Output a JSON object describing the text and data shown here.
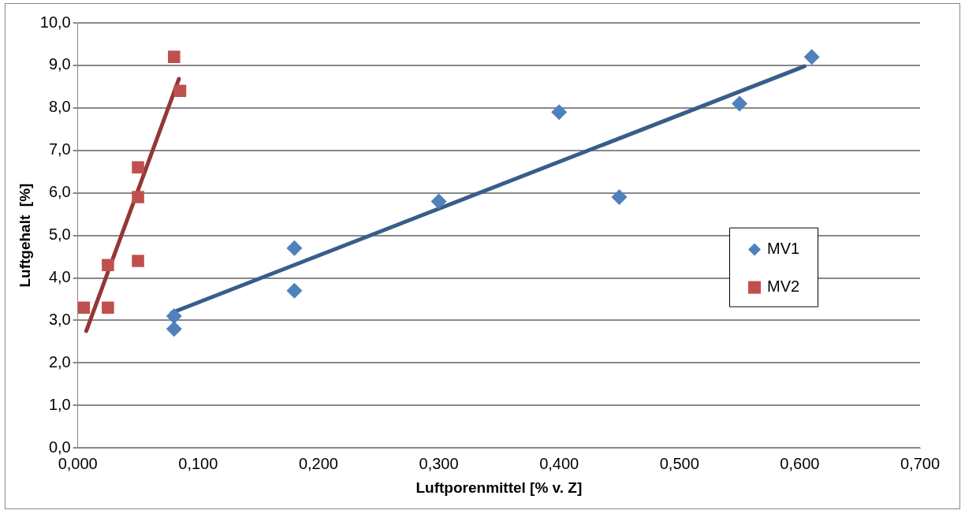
{
  "chart_data": {
    "type": "scatter",
    "xlabel": "Luftporenmittel [% v. Z]",
    "ylabel": "Luftgehalt  [%]",
    "xlim": [
      0,
      0.7
    ],
    "xticks": [
      {
        "value": 0,
        "label": "0,000"
      },
      {
        "value": 0.1,
        "label": "0,100"
      },
      {
        "value": 0.2,
        "label": "0,200"
      },
      {
        "value": 0.3,
        "label": "0,300"
      },
      {
        "value": 0.4,
        "label": "0,400"
      },
      {
        "value": 0.5,
        "label": "0,500"
      },
      {
        "value": 0.6,
        "label": "0,600"
      },
      {
        "value": 0.7,
        "label": "0,700"
      }
    ],
    "ylim": [
      0,
      10
    ],
    "yticks": [
      {
        "value": 0,
        "label": "0,0"
      },
      {
        "value": 1,
        "label": "1,0"
      },
      {
        "value": 2,
        "label": "2,0"
      },
      {
        "value": 3,
        "label": "3,0"
      },
      {
        "value": 4,
        "label": "4,0"
      },
      {
        "value": 5,
        "label": "5,0"
      },
      {
        "value": 6,
        "label": "6,0"
      },
      {
        "value": 7,
        "label": "7,0"
      },
      {
        "value": 8,
        "label": "8,0"
      },
      {
        "value": 9,
        "label": "9,0"
      },
      {
        "value": 10,
        "label": "10,0"
      }
    ],
    "grid": "y",
    "legend": "right",
    "series": [
      {
        "name": "MV1",
        "color": "#4f81bd",
        "marker": "diamond",
        "x": [
          0.08,
          0.08,
          0.18,
          0.18,
          0.3,
          0.4,
          0.45,
          0.55,
          0.61
        ],
        "values": [
          3.1,
          2.8,
          4.7,
          3.7,
          5.8,
          7.9,
          5.9,
          8.1,
          9.2
        ]
      },
      {
        "name": "MV2",
        "color": "#c0504d",
        "marker": "square",
        "x": [
          0.005,
          0.025,
          0.025,
          0.05,
          0.05,
          0.05,
          0.08,
          0.085
        ],
        "values": [
          3.3,
          3.3,
          4.3,
          4.4,
          5.9,
          6.6,
          9.2,
          8.4
        ]
      },
      {
        "type": "line",
        "color": "#385d8a",
        "marker": "none",
        "x": [
          0.078,
          0.604
        ],
        "values": [
          3.18,
          8.98
        ]
      },
      {
        "type": "line",
        "color": "#953735",
        "marker": "none",
        "x": [
          0.007,
          0.084
        ],
        "values": [
          2.75,
          8.68
        ]
      }
    ]
  }
}
